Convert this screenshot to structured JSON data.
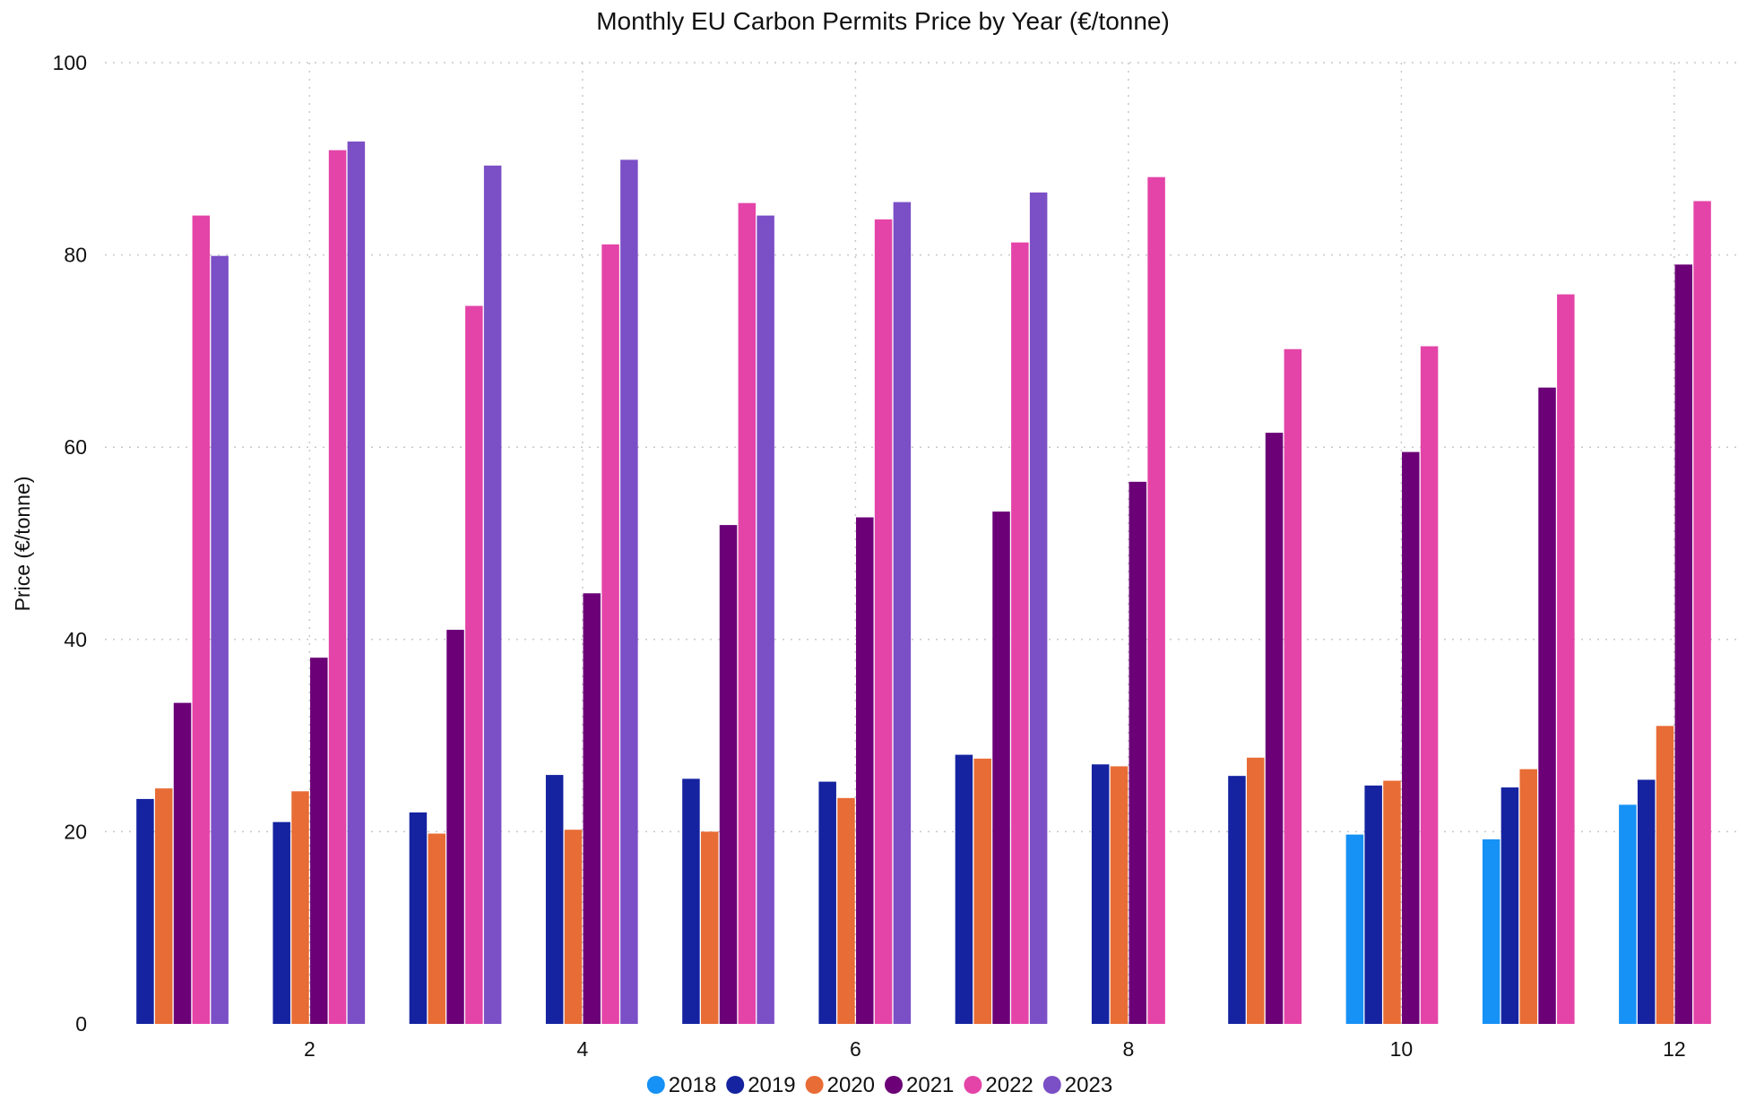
{
  "chart_data": {
    "type": "bar",
    "title": "Monthly EU Carbon Permits Price by Year (€/tonne)",
    "xlabel": "",
    "ylabel": "Price (€/tonne)",
    "ylim": [
      0,
      100
    ],
    "yticks": [
      0,
      20,
      40,
      60,
      80,
      100
    ],
    "xticks": [
      2,
      4,
      6,
      8,
      10,
      12
    ],
    "xlim": [
      0.5,
      12.5
    ],
    "grid": true,
    "legend_position": "bottom-center",
    "categories": [
      1,
      2,
      3,
      4,
      5,
      6,
      7,
      8,
      9,
      10,
      11,
      12
    ],
    "series": [
      {
        "name": "2018",
        "color": "#1691f5",
        "values": [
          null,
          null,
          null,
          null,
          null,
          null,
          null,
          null,
          null,
          19.7,
          19.2,
          22.8
        ]
      },
      {
        "name": "2019",
        "color": "#1523a0",
        "values": [
          23.4,
          21.0,
          22.0,
          25.9,
          25.5,
          25.2,
          28.0,
          27.0,
          25.8,
          24.8,
          24.6,
          25.4
        ]
      },
      {
        "name": "2020",
        "color": "#e86c35",
        "values": [
          24.5,
          24.2,
          19.8,
          20.2,
          20.0,
          23.5,
          27.6,
          26.8,
          27.7,
          25.3,
          26.5,
          31.0
        ]
      },
      {
        "name": "2021",
        "color": "#6b0077",
        "values": [
          33.4,
          38.1,
          41.0,
          44.8,
          51.9,
          52.7,
          53.3,
          56.4,
          61.5,
          59.5,
          66.2,
          79.0
        ]
      },
      {
        "name": "2022",
        "color": "#e444a8",
        "values": [
          84.1,
          90.9,
          74.7,
          81.1,
          85.4,
          83.7,
          81.3,
          88.1,
          70.2,
          70.5,
          75.9,
          85.6
        ]
      },
      {
        "name": "2023",
        "color": "#7b4fc6",
        "values": [
          79.9,
          91.8,
          89.3,
          89.9,
          84.1,
          85.5,
          86.5,
          null,
          null,
          null,
          null,
          null
        ]
      }
    ]
  }
}
